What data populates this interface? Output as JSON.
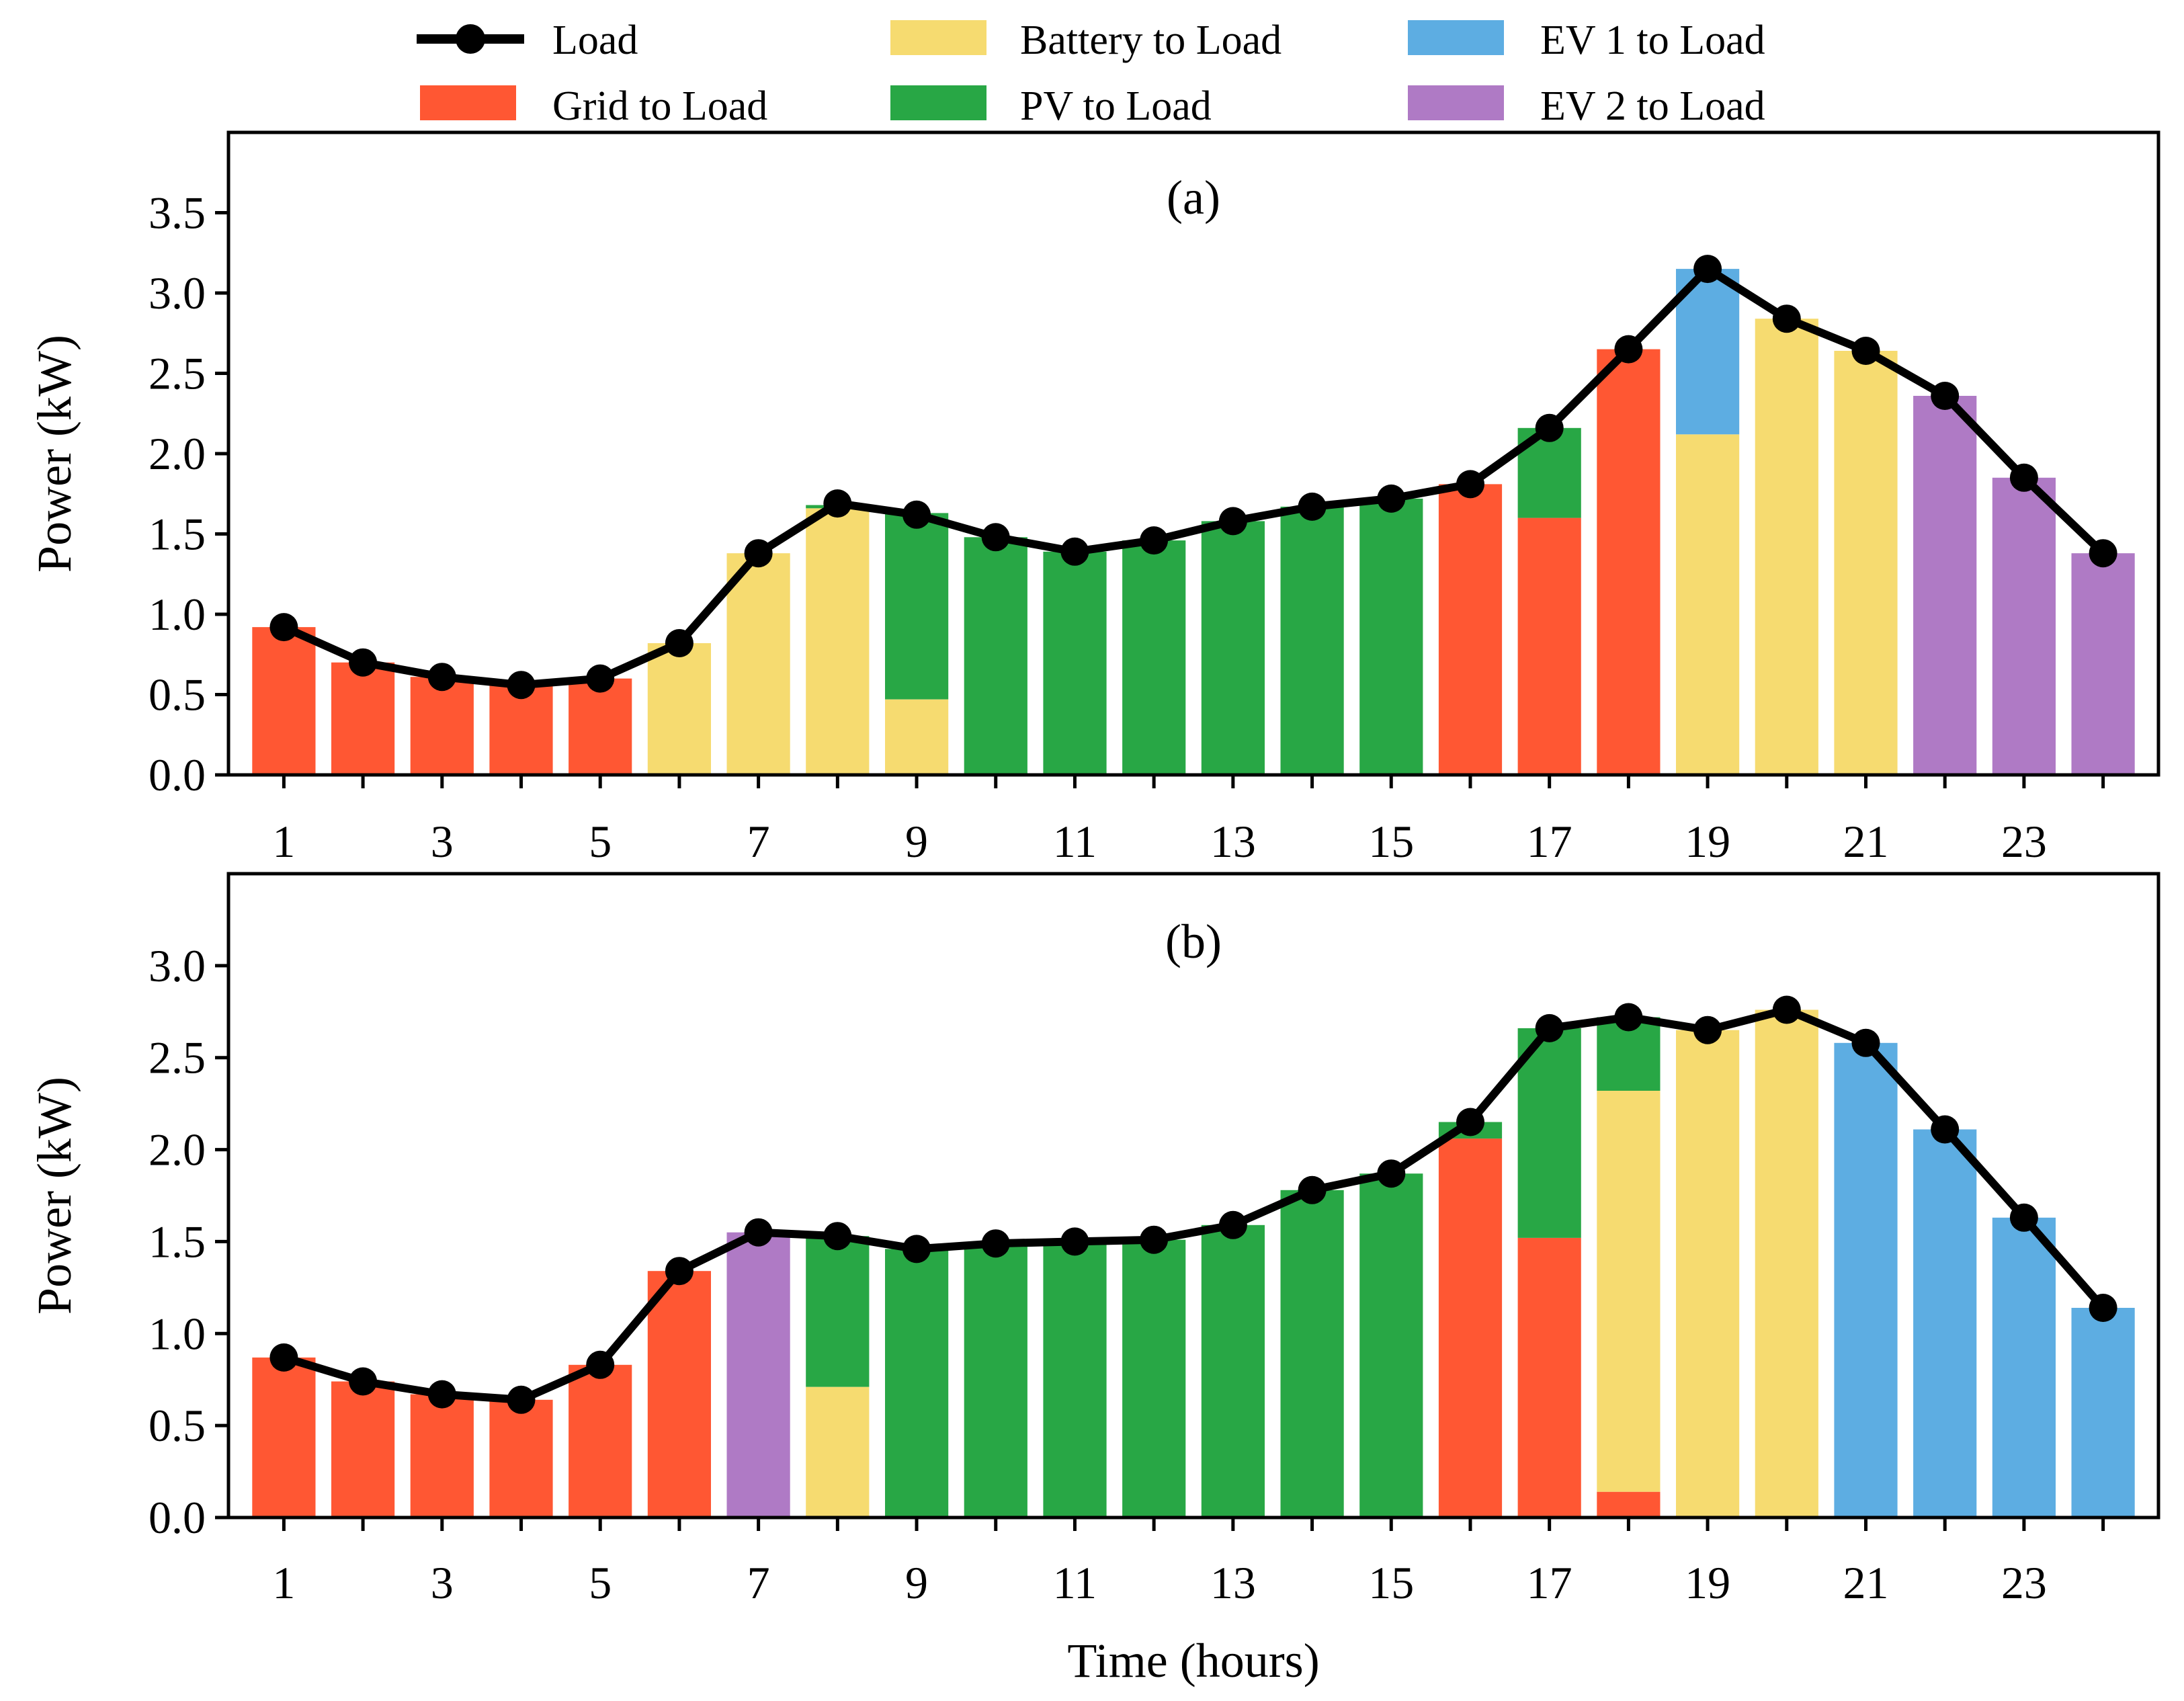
{
  "colors": {
    "grid": "#FF5733",
    "battery": "#F6DB70",
    "pv": "#28A745",
    "ev1": "#5DADE2",
    "ev2": "#AF7AC5",
    "load": "#000000"
  },
  "legend": {
    "load": "Load",
    "grid": "Grid to Load",
    "battery": "Battery to Load",
    "pv": "PV to Load",
    "ev1": "EV 1 to Load",
    "ev2": "EV 2 to Load"
  },
  "chart_data": [
    {
      "type": "bar",
      "stacked": true,
      "title": "(a)",
      "xlabel": "",
      "ylabel": "Power (kW)",
      "categories": [
        1,
        2,
        3,
        4,
        5,
        6,
        7,
        8,
        9,
        10,
        11,
        12,
        13,
        14,
        15,
        16,
        17,
        18,
        19,
        20,
        21,
        22,
        23,
        24
      ],
      "x_ticks": [
        1,
        3,
        5,
        7,
        9,
        11,
        13,
        15,
        17,
        19,
        21,
        23
      ],
      "ylim": [
        0,
        4.0
      ],
      "y_ticks": [
        "0.0",
        "0.5",
        "1.0",
        "1.5",
        "2.0",
        "2.5",
        "3.0",
        "3.5"
      ],
      "series": [
        {
          "key": "grid",
          "name": "Grid to Load",
          "values": [
            0.92,
            0.7,
            0.61,
            0.56,
            0.6,
            0,
            0,
            0,
            0,
            0,
            0,
            0,
            0,
            0,
            0,
            1.81,
            1.6,
            2.65,
            0,
            0,
            0,
            0,
            0,
            0
          ]
        },
        {
          "key": "battery",
          "name": "Battery to Load",
          "values": [
            0,
            0,
            0,
            0,
            0,
            0.82,
            1.38,
            1.66,
            0.47,
            0,
            0,
            0,
            0,
            0,
            0,
            0,
            0,
            0,
            2.12,
            2.84,
            2.64,
            0,
            0,
            0
          ]
        },
        {
          "key": "pv",
          "name": "PV to Load",
          "values": [
            0,
            0,
            0,
            0,
            0,
            0,
            0,
            0.02,
            1.16,
            1.48,
            1.39,
            1.46,
            1.58,
            1.67,
            1.72,
            0,
            0.56,
            0,
            0,
            0,
            0,
            0,
            0,
            0
          ]
        },
        {
          "key": "ev1",
          "name": "EV 1 to Load",
          "values": [
            0,
            0,
            0,
            0,
            0,
            0,
            0,
            0,
            0,
            0,
            0,
            0,
            0,
            0,
            0,
            0,
            0,
            0,
            1.03,
            0,
            0,
            0,
            0,
            0
          ]
        },
        {
          "key": "ev2",
          "name": "EV 2 to Load",
          "values": [
            0,
            0,
            0,
            0,
            0,
            0,
            0,
            0,
            0,
            0,
            0,
            0,
            0,
            0,
            0,
            0,
            0,
            0,
            0,
            0,
            0,
            2.36,
            1.85,
            1.38
          ]
        }
      ],
      "load": [
        0.92,
        0.7,
        0.61,
        0.56,
        0.6,
        0.82,
        1.38,
        1.69,
        1.62,
        1.48,
        1.39,
        1.46,
        1.58,
        1.67,
        1.72,
        1.81,
        2.16,
        2.65,
        3.15,
        2.84,
        2.64,
        2.36,
        1.85,
        1.38
      ]
    },
    {
      "type": "bar",
      "stacked": true,
      "title": "(b)",
      "xlabel": "Time (hours)",
      "ylabel": "Power (kW)",
      "categories": [
        1,
        2,
        3,
        4,
        5,
        6,
        7,
        8,
        9,
        10,
        11,
        12,
        13,
        14,
        15,
        16,
        17,
        18,
        19,
        20,
        21,
        22,
        23,
        24
      ],
      "x_ticks": [
        1,
        3,
        5,
        7,
        9,
        11,
        13,
        15,
        17,
        19,
        21,
        23
      ],
      "ylim": [
        0,
        3.5
      ],
      "y_ticks": [
        "0.0",
        "0.5",
        "1.0",
        "1.5",
        "2.0",
        "2.5",
        "3.0"
      ],
      "series": [
        {
          "key": "grid",
          "name": "Grid to Load",
          "values": [
            0.87,
            0.74,
            0.67,
            0.64,
            0.83,
            1.34,
            0,
            0,
            0,
            0,
            0,
            0,
            0,
            0,
            0,
            2.06,
            1.52,
            0.14,
            0,
            0,
            0,
            0,
            0,
            0
          ]
        },
        {
          "key": "battery",
          "name": "Battery to Load",
          "values": [
            0,
            0,
            0,
            0,
            0,
            0,
            0,
            0.71,
            0,
            0,
            0,
            0,
            0,
            0,
            0,
            0,
            0,
            2.18,
            2.65,
            2.76,
            0,
            0,
            0,
            0
          ]
        },
        {
          "key": "pv",
          "name": "PV to Load",
          "values": [
            0,
            0,
            0,
            0,
            0,
            0,
            0,
            0.82,
            1.46,
            1.49,
            1.5,
            1.51,
            1.59,
            1.78,
            1.87,
            0.09,
            1.14,
            0.4,
            0,
            0,
            0,
            0,
            0,
            0
          ]
        },
        {
          "key": "ev1",
          "name": "EV 1 to Load",
          "values": [
            0,
            0,
            0,
            0,
            0,
            0,
            0,
            0,
            0,
            0,
            0,
            0,
            0,
            0,
            0,
            0,
            0,
            0,
            0,
            0,
            2.58,
            2.11,
            1.63,
            1.14
          ]
        },
        {
          "key": "ev2",
          "name": "EV 2 to Load",
          "values": [
            0,
            0,
            0,
            0,
            0,
            0,
            1.55,
            0,
            0,
            0,
            0,
            0,
            0,
            0,
            0,
            0,
            0,
            0,
            0,
            0,
            0,
            0,
            0,
            0
          ]
        }
      ],
      "load": [
        0.87,
        0.74,
        0.67,
        0.64,
        0.83,
        1.34,
        1.55,
        1.53,
        1.46,
        1.49,
        1.5,
        1.51,
        1.59,
        1.78,
        1.87,
        2.15,
        2.66,
        2.72,
        2.65,
        2.76,
        2.58,
        2.11,
        1.63,
        1.14
      ]
    }
  ]
}
